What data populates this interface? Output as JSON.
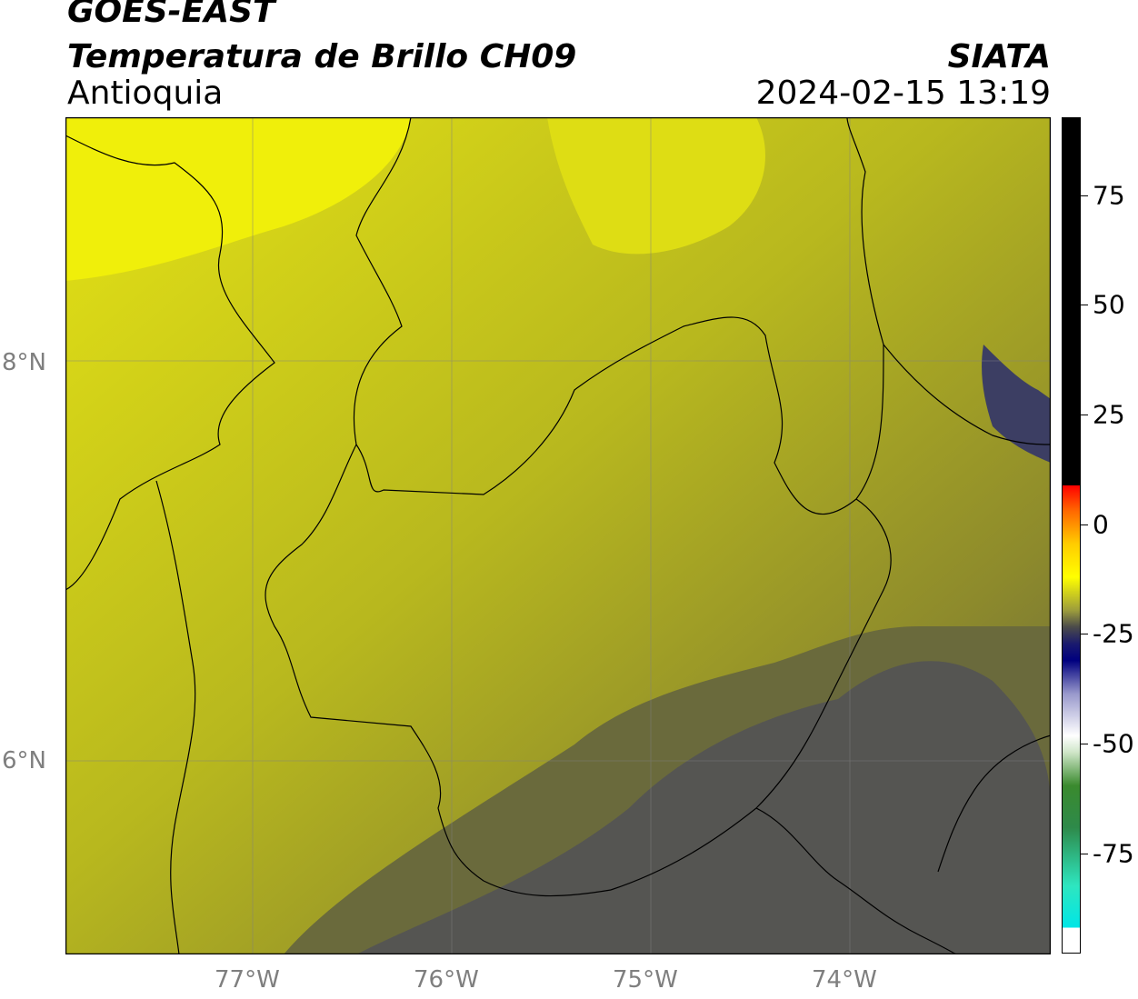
{
  "titles": {
    "satellite": "GOES-EAST",
    "product": "Temperatura de Brillo CH09",
    "region": "Antioquia",
    "organization": "SIATA",
    "datetime": "2024-02-15 13:19"
  },
  "axes": {
    "latitude_labels": [
      "8°N",
      "6°N"
    ],
    "longitude_labels": [
      "77°W",
      "76°W",
      "75°W",
      "74°W"
    ]
  },
  "colorbar": {
    "tick_labels": [
      "75",
      "50",
      "25",
      "0",
      "-25",
      "-50",
      "-75"
    ]
  },
  "colors": {
    "yellow_warm": "#e8e811",
    "olive": "#a8a822",
    "gray_cold": "#4f4f4f",
    "border": "#000000"
  }
}
